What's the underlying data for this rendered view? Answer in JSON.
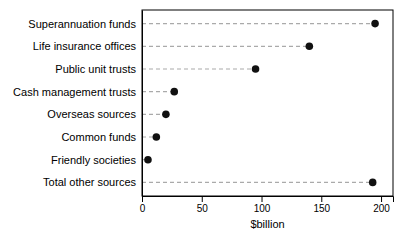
{
  "chart_data": {
    "type": "lollipop",
    "orientation": "horizontal",
    "categories": [
      "Superannuation funds",
      "Life insurance offices",
      "Public unit trusts",
      "Cash management trusts",
      "Overseas sources",
      "Common funds",
      "Friendly societies",
      "Total other sources"
    ],
    "values": [
      195,
      140,
      95,
      27,
      20,
      12,
      5,
      193
    ],
    "color": "#111111",
    "marker": "circle",
    "line_style": "dashed",
    "xlabel": "$billion",
    "xlim": [
      0,
      210
    ],
    "xticks": [
      0,
      50,
      100,
      150,
      200
    ],
    "grid": false
  }
}
